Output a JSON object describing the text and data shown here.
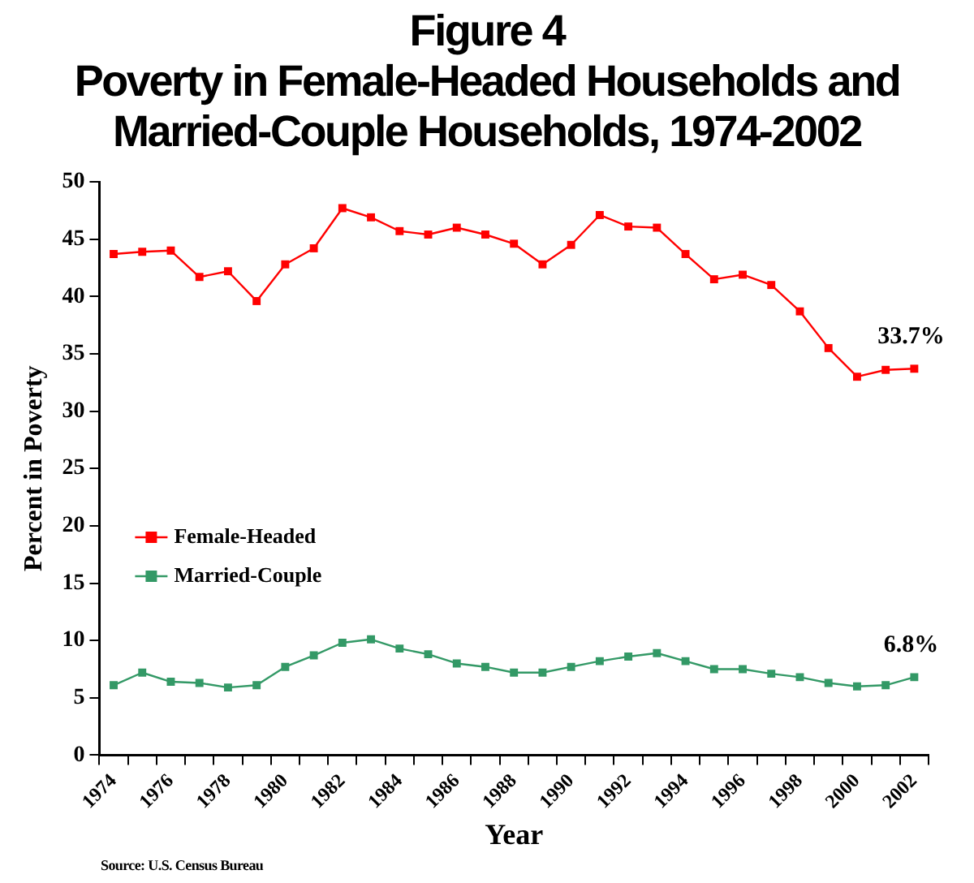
{
  "chart_data": {
    "type": "line",
    "title": "Figure 4",
    "subtitle": "Poverty in Female-Headed Households and Married-Couple Households, 1974-2002",
    "xlabel": "Year",
    "ylabel": "Percent in Poverty",
    "categories": [
      "1974",
      null,
      "1976",
      null,
      "1978",
      null,
      "1980",
      null,
      "1982",
      null,
      "1984",
      null,
      "1986",
      null,
      "1988",
      null,
      "1990",
      null,
      "1992",
      null,
      "1994",
      null,
      "1996",
      null,
      "1998",
      null,
      "2000",
      null,
      "2002"
    ],
    "series": [
      {
        "name": "Female-Headed",
        "color": "#ff0000",
        "values": [
          43.7,
          43.9,
          44.0,
          41.7,
          42.2,
          39.6,
          42.8,
          44.2,
          47.7,
          46.9,
          45.7,
          45.4,
          46.0,
          45.4,
          44.6,
          42.8,
          44.5,
          47.1,
          46.1,
          46.0,
          43.7,
          41.5,
          41.9,
          41.0,
          38.7,
          35.5,
          33.0,
          33.6,
          33.7
        ]
      },
      {
        "name": "Married-Couple",
        "color": "#339966",
        "values": [
          6.1,
          7.2,
          6.4,
          6.3,
          5.9,
          6.1,
          7.7,
          8.7,
          9.8,
          10.1,
          9.3,
          8.8,
          8.0,
          7.7,
          7.2,
          7.2,
          7.7,
          8.2,
          8.6,
          8.9,
          8.2,
          7.5,
          7.5,
          7.1,
          6.8,
          6.3,
          6.0,
          6.1,
          6.8
        ]
      }
    ],
    "ylim": [
      0,
      50
    ],
    "yticks": [
      0,
      5,
      10,
      15,
      20,
      25,
      30,
      35,
      40,
      45,
      50
    ],
    "grid": false,
    "legend": "left",
    "marker": "square",
    "line_style": "solid",
    "annotations": [
      {
        "text": "33.7%",
        "x": "2002",
        "y": 33.7
      },
      {
        "text": "6.8%",
        "x": "2002",
        "y": 6.8
      },
      "Source: U.S. Census Bureau"
    ]
  }
}
